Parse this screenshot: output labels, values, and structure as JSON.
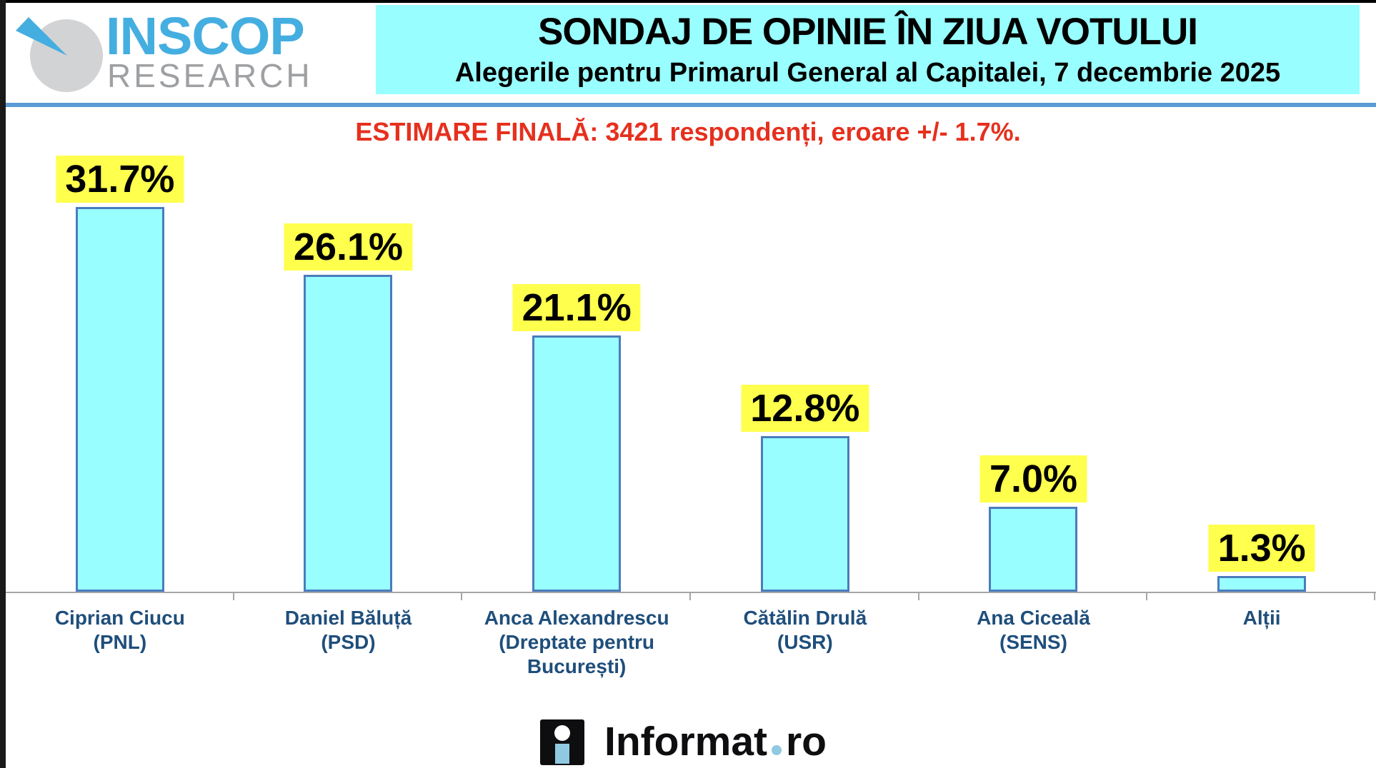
{
  "header": {
    "logo": {
      "line1": "INSCOP",
      "line2": "RESEARCH"
    },
    "title": "SONDAJ DE OPINIE ÎN ZIUA VOTULUI",
    "subtitle": "Alegerile pentru Primarul General al Capitalei, 7 decembrie 2025"
  },
  "estimate_note": "ESTIMARE FINALĂ: 3421 respondenți, eroare +/- 1.7%.",
  "chart_data": {
    "type": "bar",
    "title": "SONDAJ DE OPINIE ÎN ZIUA VOTULUI",
    "unit": "%",
    "ylim": [
      0,
      35
    ],
    "grid": false,
    "legend": "none",
    "value_label_style": "yellow-highlight",
    "categories": [
      "Ciprian Ciucu (PNL)",
      "Daniel Băluță (PSD)",
      "Anca Alexandrescu (Dreptate pentru București)",
      "Cătălin Drulă (USR)",
      "Ana Ciceală (SENS)",
      "Alții"
    ],
    "bars": [
      {
        "candidate": "Ciprian Ciucu",
        "party": "(PNL)",
        "value": 31.7,
        "label": "31.7%"
      },
      {
        "candidate": "Daniel Băluță",
        "party": "(PSD)",
        "value": 26.1,
        "label": "26.1%"
      },
      {
        "candidate": "Anca Alexandrescu",
        "party": "(Dreptate pentru București)",
        "value": 21.1,
        "label": "21.1%"
      },
      {
        "candidate": "Cătălin Drulă",
        "party": "(USR)",
        "value": 12.8,
        "label": "12.8%"
      },
      {
        "candidate": "Ana Ciceală",
        "party": "(SENS)",
        "value": 7.0,
        "label": "7.0%"
      },
      {
        "candidate": "Alții",
        "party": "",
        "value": 1.3,
        "label": "1.3%"
      }
    ]
  },
  "footer": {
    "brand": "Informat",
    "tld": "ro"
  },
  "colors": {
    "header_bg": "#99FEFF",
    "bar_fill": "#99FEFF",
    "bar_border": "#4A7CBD",
    "value_label_bg": "#FFFF4D",
    "estimate_text": "#E6301E",
    "candidate_text": "#1F4E7B",
    "divider": "#5B9BD5",
    "axis": "#A6A6A6",
    "inscop_blue": "#45AEE0",
    "inscop_gray": "#9EA0A3",
    "logo_circle": "#D2D3D4",
    "informat_accent": "#8FC9E2"
  }
}
